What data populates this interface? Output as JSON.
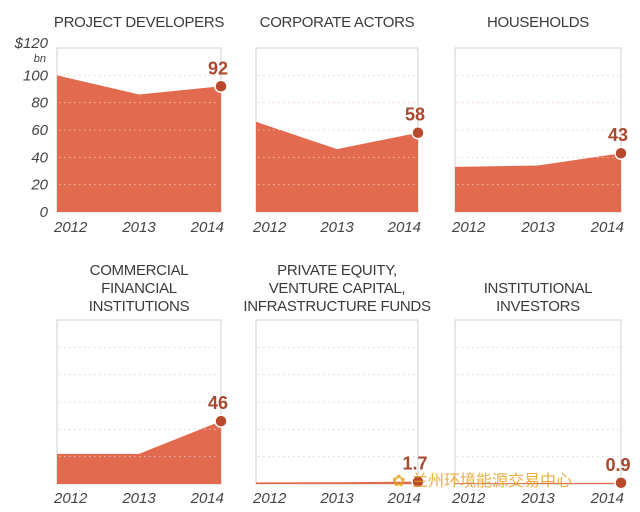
{
  "colors": {
    "fill": "#e26a4f",
    "point": "#b8492d",
    "label": "#a8482f",
    "frame": "#cfcfcf",
    "grid": "#d0d0d0"
  },
  "y_axis": {
    "unit_top": "$120",
    "unit_sub": "bn",
    "ticks": [
      "100",
      "80",
      "60",
      "40",
      "20",
      "0"
    ]
  },
  "watermark": "兰州环境能源交易中心",
  "chart_data": [
    {
      "type": "area",
      "title": [
        "PROJECT DEVELOPERS"
      ],
      "x": [
        "2012",
        "2013",
        "2014"
      ],
      "values": [
        100,
        86,
        92
      ],
      "end_label": "92",
      "ylim": [
        0,
        120
      ]
    },
    {
      "type": "area",
      "title": [
        "CORPORATE ACTORS"
      ],
      "x": [
        "2012",
        "2013",
        "2014"
      ],
      "values": [
        66,
        46,
        58
      ],
      "end_label": "58",
      "ylim": [
        0,
        120
      ]
    },
    {
      "type": "area",
      "title": [
        "HOUSEHOLDS"
      ],
      "x": [
        "2012",
        "2013",
        "2014"
      ],
      "values": [
        33,
        34,
        43
      ],
      "end_label": "43",
      "ylim": [
        0,
        120
      ]
    },
    {
      "type": "area",
      "title": [
        "COMMERCIAL",
        "FINANCIAL",
        "INSTITUTIONS"
      ],
      "x": [
        "2012",
        "2013",
        "2014"
      ],
      "values": [
        22,
        22,
        46
      ],
      "end_label": "46",
      "ylim": [
        0,
        120
      ]
    },
    {
      "type": "area",
      "title": [
        "PRIVATE EQUITY,",
        "VENTURE CAPITAL,",
        "INFRASTRUCTURE FUNDS"
      ],
      "x": [
        "2012",
        "2013",
        "2014"
      ],
      "values": [
        1.2,
        1.3,
        1.7
      ],
      "end_label": "1.7",
      "ylim": [
        0,
        120
      ]
    },
    {
      "type": "area",
      "title": [
        "INSTITUTIONAL",
        "INVESTORS"
      ],
      "x": [
        "2012",
        "2013",
        "2014"
      ],
      "values": [
        0.6,
        0.7,
        0.9
      ],
      "end_label": "0.9",
      "ylim": [
        0,
        120
      ]
    }
  ]
}
